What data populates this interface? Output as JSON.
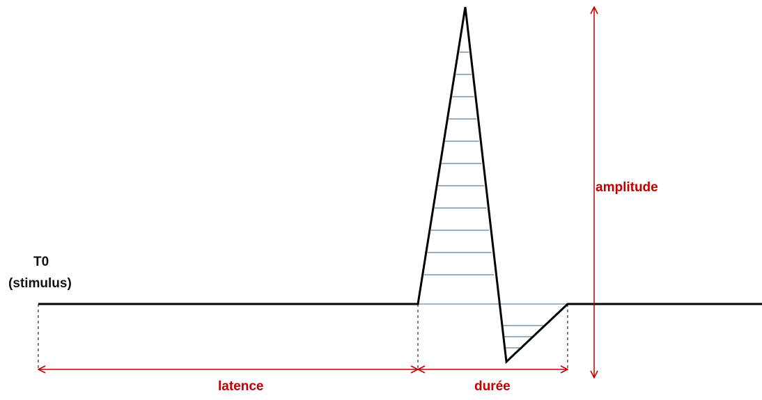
{
  "labels": {
    "t0": "T0",
    "stimulus": "(stimulus)",
    "amplitude": "amplitude",
    "latence": "latence",
    "duree": "durée"
  },
  "colors": {
    "trace": "#000000",
    "measure": "#c00000",
    "hatch": "#5b7fa6",
    "baseline_fill": "#9fb6cf"
  },
  "hatching": {
    "positive_lines": 11,
    "negative_lines": 3
  }
}
